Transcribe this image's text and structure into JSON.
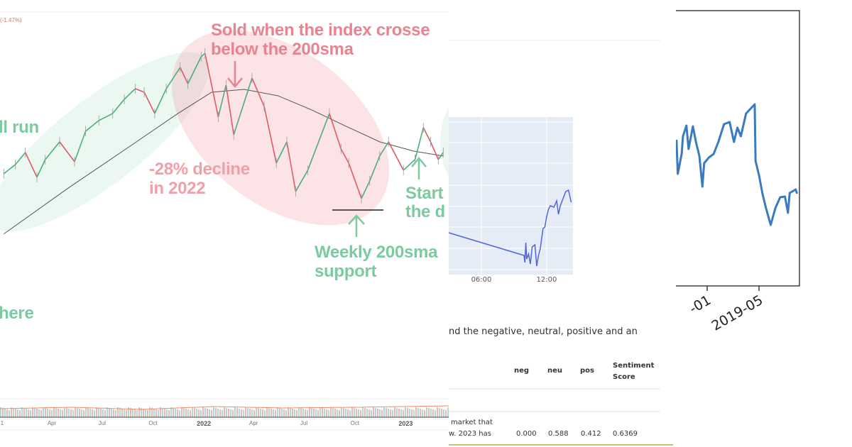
{
  "left_panel": {
    "change_label": "(-1.47%)",
    "annotations": {
      "sold_line1": "Sold when the index crosse",
      "sold_line2": "below the 200sma",
      "bull_run": "ll run",
      "decline_line1": "-28% decline",
      "decline_line2": "in 2022",
      "support_line1": "Weekly 200sma",
      "support_line2": "support",
      "start_line1": "Start",
      "start_line2": "the d",
      "here": "here"
    },
    "colors": {
      "bear": "#e9838f",
      "bull": "#7ccaa0",
      "sma": "#555555"
    }
  },
  "middle_panel": {
    "intro_text": "nd the negative, neutral, positive and an",
    "table": {
      "headers": [
        "neg",
        "neu",
        "pos",
        "Sentiment Score"
      ],
      "row": {
        "text_line1": "market that",
        "text_line2": "w. 2023 has",
        "values": [
          "0.000",
          "0.588",
          "0.412",
          "0.6369"
        ]
      }
    }
  },
  "chart_data": [
    {
      "type": "line",
      "subtype": "candlestick-with-moving-average",
      "x_tick_labels": [
        "1",
        "Apr",
        "Jul",
        "Oct",
        "2022",
        "Apr",
        "Jul",
        "Oct",
        "2023"
      ],
      "x_tick_dates": [
        "2021-01-01",
        "2021-04-01",
        "2021-07-01",
        "2021-10-01",
        "2022-01-01",
        "2022-04-01",
        "2022-07-01",
        "2022-10-01",
        "2023-01-01"
      ],
      "ylim": [
        9000,
        18190
      ],
      "grid": false,
      "series": [
        {
          "role": "price",
          "points": [
            [
              "2021-01-04",
              12675
            ],
            [
              "2021-01-25",
              12968
            ],
            [
              "2021-02-12",
              13350
            ],
            [
              "2021-03-05",
              12563
            ],
            [
              "2021-03-20",
              13125
            ],
            [
              "2021-04-15",
              13688
            ],
            [
              "2021-05-12",
              13058
            ],
            [
              "2021-06-01",
              14025
            ],
            [
              "2021-06-25",
              14363
            ],
            [
              "2021-07-20",
              14588
            ],
            [
              "2021-08-10",
              15038
            ],
            [
              "2021-08-30",
              15375
            ],
            [
              "2021-09-15",
              15263
            ],
            [
              "2021-10-04",
              14588
            ],
            [
              "2021-10-25",
              15375
            ],
            [
              "2021-11-19",
              16050
            ],
            [
              "2021-12-03",
              15533
            ],
            [
              "2021-12-27",
              16388
            ],
            [
              "2022-01-03",
              16500
            ],
            [
              "2022-01-27",
              14475
            ],
            [
              "2022-02-10",
              15488
            ],
            [
              "2022-02-24",
              13913
            ],
            [
              "2022-03-29",
              15713
            ],
            [
              "2022-04-20",
              14813
            ],
            [
              "2022-05-12",
              13013
            ],
            [
              "2022-05-31",
              13688
            ],
            [
              "2022-06-16",
              12113
            ],
            [
              "2022-07-08",
              12788
            ],
            [
              "2022-08-16",
              14588
            ],
            [
              "2022-09-06",
              13463
            ],
            [
              "2022-09-20",
              13013
            ],
            [
              "2022-10-13",
              11888
            ],
            [
              "2022-10-28",
              12450
            ],
            [
              "2022-11-15",
              13238
            ],
            [
              "2022-12-01",
              13688
            ],
            [
              "2022-12-28",
              12788
            ],
            [
              "2023-01-18",
              13125
            ],
            [
              "2023-02-02",
              14138
            ],
            [
              "2023-02-15",
              13688
            ],
            [
              "2023-03-01",
              13125
            ],
            [
              "2023-03-10",
              13350
            ]
          ]
        },
        {
          "role": "200sma",
          "points": [
            [
              "2021-01-04",
              10763
            ],
            [
              "2021-05-01",
              12225
            ],
            [
              "2021-09-01",
              13688
            ],
            [
              "2021-11-15",
              14588
            ],
            [
              "2022-01-15",
              15263
            ],
            [
              "2022-03-15",
              15353
            ],
            [
              "2022-05-15",
              15150
            ],
            [
              "2022-07-15",
              14700
            ],
            [
              "2022-09-15",
              14183
            ],
            [
              "2022-11-15",
              13688
            ],
            [
              "2023-01-15",
              13395
            ],
            [
              "2023-03-10",
              13238
            ]
          ]
        }
      ],
      "support_level": 11888
    },
    {
      "type": "line",
      "x_tick_labels": [
        "06:00",
        "12:00"
      ],
      "xlim": [
        "03:00",
        "14:25"
      ],
      "ylim": [
        13,
        235
      ],
      "grid": true,
      "background": "#e5ecf6",
      "line_color": "#5063e0",
      "points": [
        [
          "03:00",
          72
        ],
        [
          "09:55",
          40
        ],
        [
          "10:00",
          30
        ],
        [
          "10:05",
          58
        ],
        [
          "10:10",
          35
        ],
        [
          "10:20",
          42
        ],
        [
          "10:30",
          28
        ],
        [
          "10:40",
          52
        ],
        [
          "10:55",
          55
        ],
        [
          "11:05",
          25
        ],
        [
          "11:15",
          40
        ],
        [
          "11:25",
          50
        ],
        [
          "11:40",
          78
        ],
        [
          "11:50",
          80
        ],
        [
          "12:00",
          95
        ],
        [
          "12:10",
          105
        ],
        [
          "12:20",
          110
        ],
        [
          "12:40",
          108
        ],
        [
          "12:55",
          117
        ],
        [
          "13:05",
          98
        ],
        [
          "13:15",
          110
        ],
        [
          "13:30",
          120
        ],
        [
          "13:45",
          130
        ],
        [
          "14:00",
          132
        ],
        [
          "14:15",
          115
        ]
      ]
    },
    {
      "type": "line",
      "x_tick_labels": [
        "-01",
        "2019-05"
      ],
      "x_tick_dates": [
        "2019-01-01",
        "2019-05-01"
      ],
      "ylim": [
        -3,
        385
      ],
      "grid": false,
      "line_color": "#3a7abf",
      "points": [
        [
          "2018-10-22",
          203
        ],
        [
          "2018-10-25",
          155
        ],
        [
          "2018-11-03",
          183
        ],
        [
          "2018-11-06",
          208
        ],
        [
          "2018-11-14",
          223
        ],
        [
          "2018-11-19",
          190
        ],
        [
          "2018-11-29",
          222
        ],
        [
          "2018-12-06",
          200
        ],
        [
          "2018-12-14",
          180
        ],
        [
          "2018-12-21",
          137
        ],
        [
          "2018-12-25",
          170
        ],
        [
          "2019-01-05",
          178
        ],
        [
          "2019-01-16",
          183
        ],
        [
          "2019-01-27",
          200
        ],
        [
          "2019-02-09",
          225
        ],
        [
          "2019-02-22",
          228
        ],
        [
          "2019-03-04",
          200
        ],
        [
          "2019-03-12",
          220
        ],
        [
          "2019-03-20",
          208
        ],
        [
          "2019-04-01",
          240
        ],
        [
          "2019-04-21",
          253
        ],
        [
          "2019-04-23",
          173
        ],
        [
          "2019-05-01",
          153
        ],
        [
          "2019-05-09",
          127
        ],
        [
          "2019-05-17",
          107
        ],
        [
          "2019-05-28",
          83
        ],
        [
          "2019-06-08",
          107
        ],
        [
          "2019-06-19",
          122
        ],
        [
          "2019-06-30",
          123
        ],
        [
          "2019-07-07",
          100
        ],
        [
          "2019-07-11",
          128
        ],
        [
          "2019-07-25",
          133
        ],
        [
          "2019-07-28",
          127
        ]
      ]
    }
  ]
}
